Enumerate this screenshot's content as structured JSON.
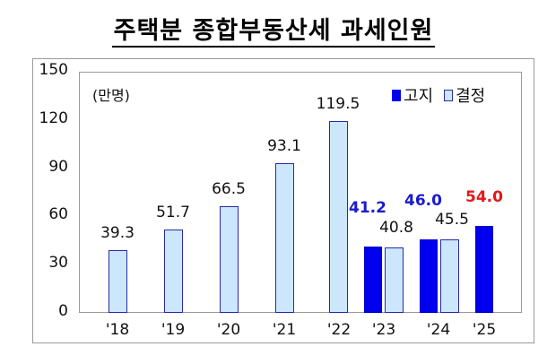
{
  "title": "주택분 종합부동산세 과세인원",
  "unit_label": "(만명)",
  "legend": {
    "notice_label": "고지",
    "decided_label": "결정"
  },
  "colors": {
    "notice": "#0000ee",
    "decided": "#cce6fb",
    "decided_border": "#2a2aa8",
    "notice_label": "#1a1ad0",
    "highlight_label": "#e01a1a"
  },
  "chart_data": {
    "type": "bar",
    "title": "주택분 종합부동산세 과세인원",
    "xlabel": "",
    "ylabel": "(만명)",
    "ylim": [
      0,
      150
    ],
    "yticks": [
      0,
      30,
      60,
      90,
      120,
      150
    ],
    "categories": [
      "'18",
      "'19",
      "'20",
      "'21",
      "'22",
      "'23",
      "'24",
      "'25"
    ],
    "series": [
      {
        "name": "고지",
        "values": [
          null,
          null,
          null,
          null,
          null,
          41.2,
          46.0,
          54.0
        ],
        "labels": [
          "",
          "",
          "",
          "",
          "",
          "41.2",
          "46.0",
          "54.0"
        ]
      },
      {
        "name": "결정",
        "values": [
          39.3,
          51.7,
          66.5,
          93.1,
          119.5,
          40.8,
          45.5,
          null
        ],
        "labels": [
          "39.3",
          "51.7",
          "66.5",
          "93.1",
          "119.5",
          "40.8",
          "45.5",
          ""
        ]
      }
    ],
    "annotations": [
      {
        "text": "54.0",
        "category": "'25",
        "color": "red",
        "bold": true
      },
      {
        "text": "41.2",
        "category": "'23",
        "color": "blue",
        "bold": true
      },
      {
        "text": "46.0",
        "category": "'24",
        "color": "blue",
        "bold": true
      }
    ],
    "legend_position": "top-right",
    "grid": false
  }
}
